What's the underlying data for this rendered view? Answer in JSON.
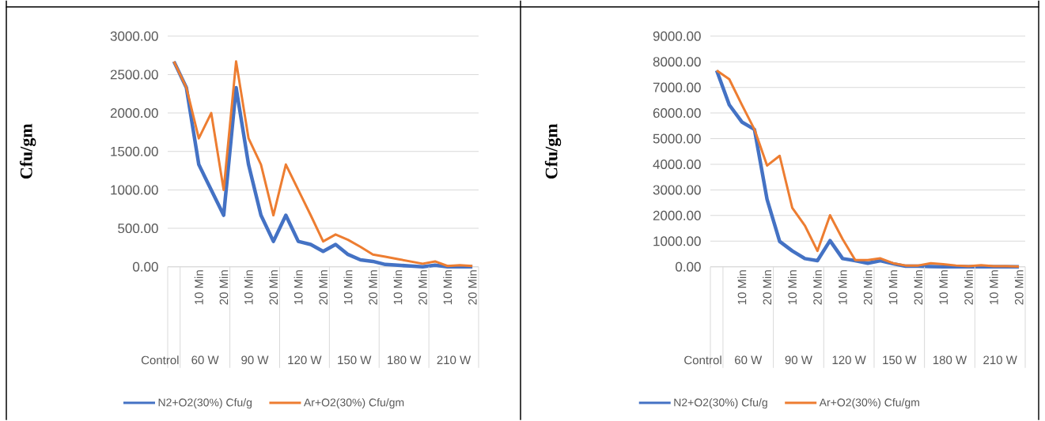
{
  "chart_data": [
    {
      "type": "line",
      "ylabel": "Cfu/gm",
      "categories": [
        null,
        null,
        "10 Min",
        null,
        "20 Min",
        null,
        "10 Min",
        null,
        "20 Min",
        null,
        "10 Min",
        null,
        "20 Min",
        null,
        "10 Min",
        null,
        "20 Min",
        null,
        "10 Min",
        null,
        "20 Min",
        null,
        "10 Min",
        null,
        "20 Min"
      ],
      "annotations": [
        "Control",
        "60 W",
        "90 W",
        "120 W",
        "150 W",
        "180 W",
        "210 W"
      ],
      "series": [
        {
          "name": "N2+O2(30%) Cfu/g",
          "color": "#4472c4",
          "values": [
            2670,
            2330,
            1330,
            1000,
            670,
            2330,
            1330,
            670,
            330,
            670,
            330,
            290,
            200,
            290,
            160,
            90,
            70,
            30,
            20,
            10,
            0,
            20,
            0,
            0,
            0
          ]
        },
        {
          "name": "Ar+O2(30%) Cfu/gm",
          "color": "#ed7d31",
          "values": [
            2670,
            2330,
            1670,
            2000,
            1000,
            2670,
            1670,
            1330,
            670,
            1330,
            1000,
            670,
            330,
            420,
            350,
            260,
            160,
            130,
            100,
            70,
            40,
            70,
            10,
            20,
            10
          ]
        }
      ],
      "ylim": [
        0,
        3000
      ],
      "yticks": [
        {
          "value": 0,
          "label": "0.00"
        },
        {
          "value": 500,
          "label": "500.00"
        },
        {
          "value": 1000,
          "label": "1000.00"
        },
        {
          "value": 1500,
          "label": "1500.00"
        },
        {
          "value": 2000,
          "label": "2000.00"
        },
        {
          "value": 2500,
          "label": "2500.00"
        },
        {
          "value": 3000,
          "label": "3000.00"
        }
      ],
      "grid": "y",
      "legend": "bottom"
    },
    {
      "type": "line",
      "ylabel": "Cfu/gm",
      "categories": [
        null,
        null,
        "10 Min",
        null,
        "20 Min",
        null,
        "10 Min",
        null,
        "20 Min",
        null,
        "10 Min",
        null,
        "20 Min",
        null,
        "10 Min",
        null,
        "20 Min",
        null,
        "10 Min",
        null,
        "20 Min",
        null,
        "10 Min",
        null,
        "20 Min"
      ],
      "annotations": [
        "Control",
        "60 W",
        "90 W",
        "120 W",
        "150 W",
        "180 W",
        "210 W"
      ],
      "series": [
        {
          "name": "N2+O2(30%) Cfu/g",
          "color": "#4472c4",
          "values": [
            7660,
            6320,
            5650,
            5360,
            2630,
            990,
            620,
            320,
            240,
            1020,
            320,
            240,
            140,
            240,
            120,
            20,
            20,
            10,
            0,
            10,
            0,
            10,
            0,
            0,
            0
          ]
        },
        {
          "name": "Ar+O2(30%) Cfu/gm",
          "color": "#ed7d31",
          "values": [
            7660,
            7320,
            6320,
            5360,
            3950,
            4330,
            2300,
            1610,
            620,
            2010,
            1080,
            260,
            260,
            330,
            140,
            50,
            50,
            140,
            100,
            50,
            20,
            60,
            20,
            20,
            10
          ]
        }
      ],
      "ylim": [
        0,
        9000
      ],
      "yticks": [
        {
          "value": 0,
          "label": "0.00"
        },
        {
          "value": 1000,
          "label": "1000.00"
        },
        {
          "value": 2000,
          "label": "2000.00"
        },
        {
          "value": 3000,
          "label": "3000.00"
        },
        {
          "value": 4000,
          "label": "4000.00"
        },
        {
          "value": 5000,
          "label": "5000.00"
        },
        {
          "value": 6000,
          "label": "6000.00"
        },
        {
          "value": 7000,
          "label": "7000.00"
        },
        {
          "value": 8000,
          "label": "8000.00"
        },
        {
          "value": 9000,
          "label": "9000.00"
        }
      ],
      "grid": "y",
      "legend": "bottom"
    }
  ]
}
